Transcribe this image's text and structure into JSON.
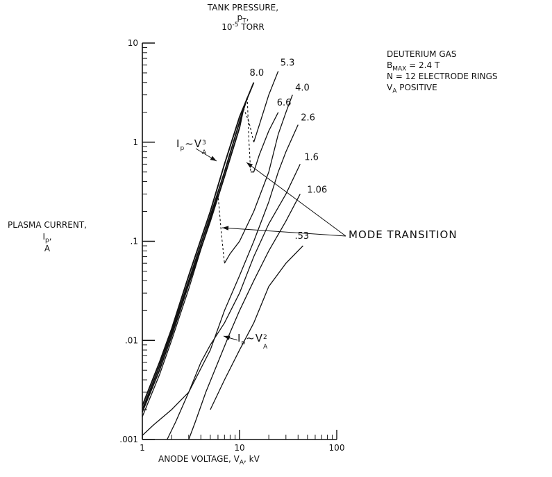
{
  "chart_data": {
    "type": "line",
    "xscale": "log",
    "yscale": "log",
    "xlim": [
      1,
      100
    ],
    "ylim": [
      0.001,
      10
    ],
    "x_ticks": [
      "1",
      "10",
      "100"
    ],
    "y_ticks": [
      ".001",
      ".01",
      ".1",
      "1",
      "10"
    ],
    "xlabel_text": "ANODE VOLTAGE, V",
    "xlabel_sub": "A",
    "xlabel_unit": ", kV",
    "ylabel": {
      "line1": "PLASMA CURRENT,",
      "line2": "I",
      "line2_sub": "p",
      "line2_tail": ",",
      "line3": "A"
    },
    "series_header": {
      "line1": "TANK PRESSURE,",
      "line2": "p",
      "line2_sub": "T",
      "line2_tail": ",",
      "line3_base": "10",
      "line3_sup": "-5",
      "line3_tail": " TORR"
    },
    "conditions": {
      "line1": "DEUTERIUM GAS",
      "line2_base": "B",
      "line2_sub": "MAX",
      "line2_tail": " = 2.4 T",
      "line3": "N = 12 ELECTRODE RINGS",
      "line4_base": "V",
      "line4_sub": "A",
      "line4_tail": " POSITIVE"
    },
    "annotations": {
      "mode_transition": "MODE TRANSITION",
      "cubic_base": "I",
      "cubic_sub": "p",
      "cubic_mid": "~V",
      "cubic_sub2": "A",
      "cubic_sup": "3",
      "square_base": "I",
      "square_sub": "p",
      "square_mid": "~V",
      "square_sub2": "A",
      "square_sup": "2"
    },
    "series": [
      {
        "label": "8.0",
        "dashed_from": null,
        "points": [
          [
            1,
            0.0022
          ],
          [
            1.5,
            0.006
          ],
          [
            2,
            0.013
          ],
          [
            3,
            0.045
          ],
          [
            5,
            0.2
          ],
          [
            7,
            0.6
          ],
          [
            10,
            1.8
          ],
          [
            14,
            4.0
          ]
        ]
      },
      {
        "label": "6.6",
        "dashed_from": 4,
        "points": [
          [
            1,
            0.002
          ],
          [
            1.5,
            0.0055
          ],
          [
            2,
            0.012
          ],
          [
            3,
            0.04
          ],
          [
            5,
            0.18
          ],
          [
            7,
            0.5
          ],
          [
            10,
            1.6
          ],
          [
            12,
            2.8
          ],
          [
            12.5,
            1.0
          ],
          [
            13,
            0.5
          ],
          [
            14,
            0.5
          ],
          [
            16,
            0.75
          ],
          [
            20,
            1.3
          ],
          [
            25,
            2.0
          ]
        ]
      },
      {
        "label": "5.3",
        "dashed_from": 4,
        "points": [
          [
            1,
            0.0019
          ],
          [
            1.5,
            0.005
          ],
          [
            2,
            0.011
          ],
          [
            3,
            0.037
          ],
          [
            5,
            0.16
          ],
          [
            7,
            0.45
          ],
          [
            10,
            1.4
          ],
          [
            11,
            2.2
          ],
          [
            12.5,
            1.6
          ],
          [
            14,
            1.0
          ],
          [
            16,
            1.5
          ],
          [
            20,
            3.0
          ],
          [
            25,
            5.2
          ]
        ]
      },
      {
        "label": "4.0",
        "dashed_from": 3,
        "points": [
          [
            1,
            0.0017
          ],
          [
            1.5,
            0.0045
          ],
          [
            2,
            0.01
          ],
          [
            3,
            0.033
          ],
          [
            4.5,
            0.12
          ],
          [
            6,
            0.3
          ],
          [
            6.5,
            0.12
          ],
          [
            7,
            0.06
          ],
          [
            8,
            0.075
          ],
          [
            10,
            0.1
          ],
          [
            14,
            0.2
          ],
          [
            20,
            0.5
          ],
          [
            25,
            1.2
          ],
          [
            30,
            2.0
          ],
          [
            35,
            3.0
          ]
        ]
      },
      {
        "label": "2.6",
        "dashed_from": null,
        "points": [
          [
            1,
            0.0011
          ],
          [
            1.3,
            0.0014
          ],
          [
            2,
            0.002
          ],
          [
            3,
            0.003
          ],
          [
            5,
            0.008
          ],
          [
            7,
            0.02
          ],
          [
            10,
            0.045
          ],
          [
            14,
            0.1
          ],
          [
            20,
            0.25
          ],
          [
            25,
            0.5
          ],
          [
            30,
            0.8
          ],
          [
            40,
            1.5
          ]
        ]
      },
      {
        "label": "1.6",
        "dashed_from": null,
        "points": [
          [
            1.8,
            0.001
          ],
          [
            2.2,
            0.0015
          ],
          [
            3,
            0.003
          ],
          [
            4,
            0.006
          ],
          [
            5,
            0.009
          ],
          [
            7,
            0.015
          ],
          [
            10,
            0.03
          ],
          [
            14,
            0.07
          ],
          [
            20,
            0.15
          ],
          [
            30,
            0.3
          ],
          [
            42,
            0.6
          ]
        ]
      },
      {
        "label": "1.06",
        "dashed_from": null,
        "points": [
          [
            3,
            0.001
          ],
          [
            3.5,
            0.0015
          ],
          [
            4.5,
            0.003
          ],
          [
            6,
            0.006
          ],
          [
            8,
            0.012
          ],
          [
            10,
            0.02
          ],
          [
            14,
            0.04
          ],
          [
            20,
            0.08
          ],
          [
            30,
            0.16
          ],
          [
            42,
            0.3
          ]
        ]
      },
      {
        "label": ".53",
        "dashed_from": null,
        "points": [
          [
            5,
            0.002
          ],
          [
            7,
            0.004
          ],
          [
            10,
            0.008
          ],
          [
            14,
            0.015
          ],
          [
            20,
            0.035
          ],
          [
            30,
            0.06
          ],
          [
            45,
            0.09
          ]
        ]
      }
    ],
    "grid": false,
    "legend": "none"
  }
}
